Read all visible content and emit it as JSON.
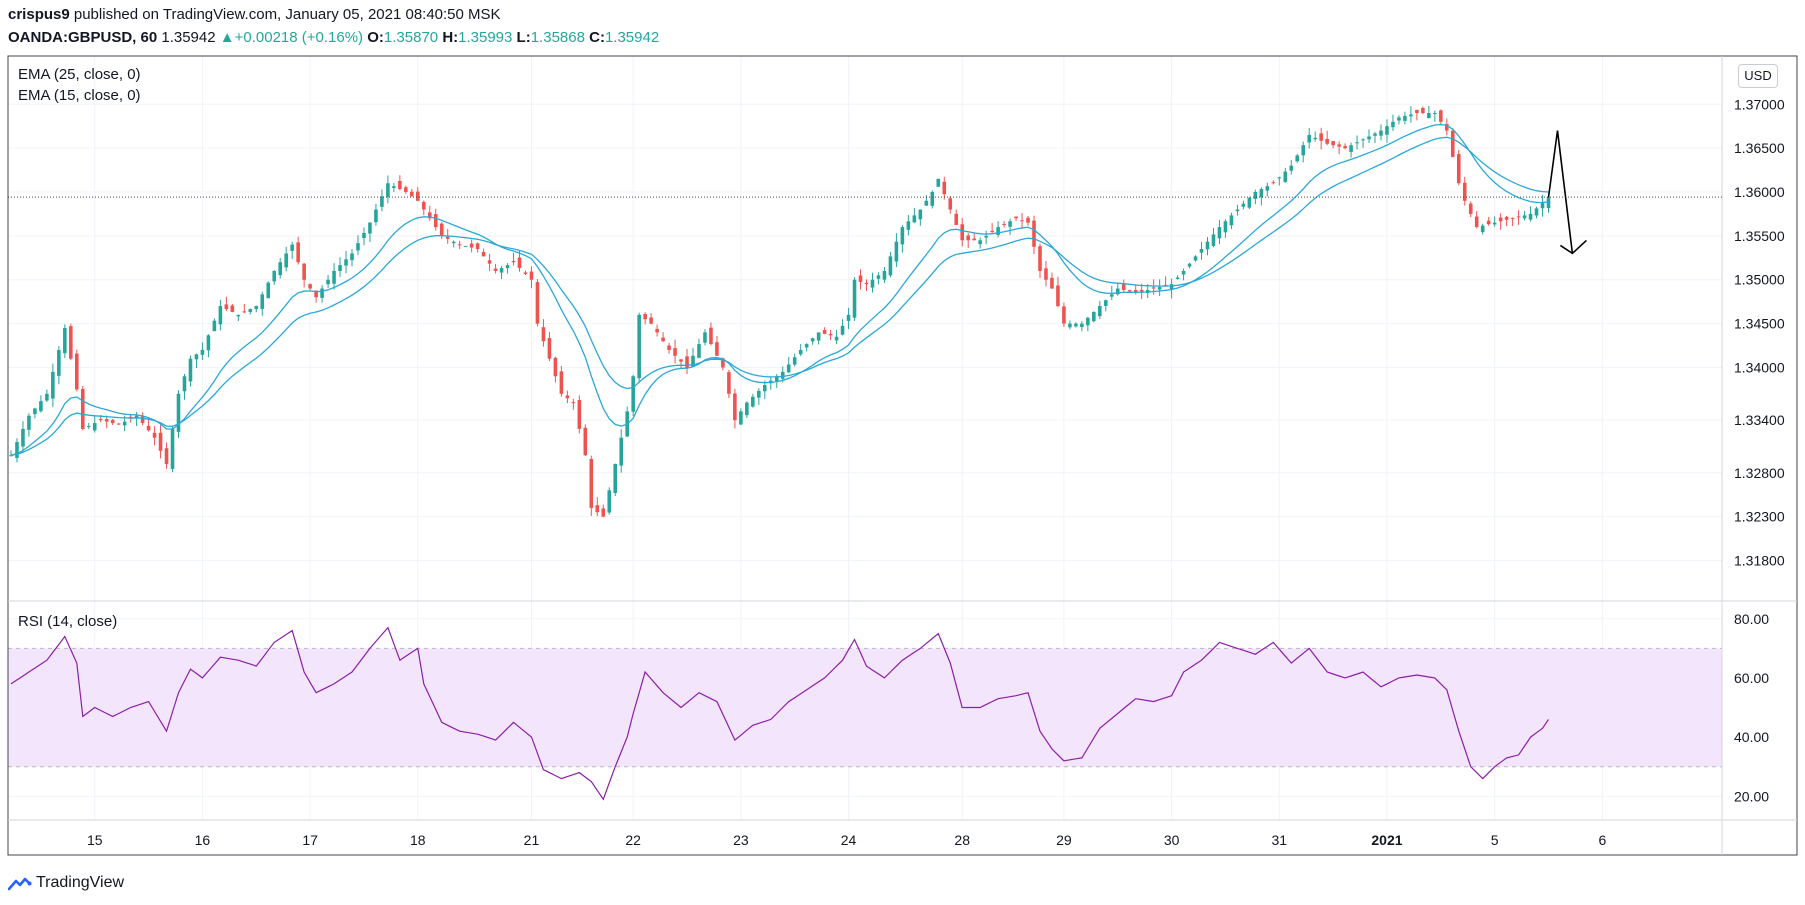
{
  "header": {
    "author": "crispus9",
    "published_text": " published on TradingView.com, January 05, 2021 08:40:50 MSK",
    "symbol": "OANDA:GBPUSD, 60",
    "last": "1.35942",
    "change": "+0.00218 (+0.16%)",
    "open_label": "O:",
    "open": "1.35870",
    "high_label": "H:",
    "high": "1.35993",
    "low_label": "L:",
    "low": "1.35868",
    "close_label": "C:",
    "close": "1.35942"
  },
  "legend": {
    "ema25": "EMA (25, close, 0)",
    "ema15": "EMA (15, close, 0)",
    "rsi": "RSI (14, close)"
  },
  "currency_badge": "USD",
  "footer": {
    "brand": "TradingView"
  },
  "colors": {
    "up": "#26a69a",
    "down": "#ef5350",
    "ema": "#2aa8d8",
    "rsi_line": "#8b1fa8",
    "rsi_band": "#f3e5fb"
  },
  "chart_data": {
    "type": "candlestick",
    "price_axis": {
      "ticks": [
        1.37,
        1.365,
        1.36,
        1.355,
        1.35,
        1.345,
        1.34,
        1.334,
        1.328,
        1.323,
        1.318
      ],
      "tick_labels": [
        "1.37000",
        "1.36500",
        "1.36000",
        "1.35500",
        "1.35000",
        "1.34500",
        "1.34000",
        "1.33400",
        "1.32800",
        "1.32300",
        "1.31800"
      ],
      "range": [
        1.3135,
        1.3755
      ],
      "current_price_line": 1.35942
    },
    "rsi_axis": {
      "ticks": [
        80,
        60,
        40,
        20
      ],
      "tick_labels": [
        "80.00",
        "60.00",
        "40.00",
        "20.00"
      ],
      "range": [
        12,
        86
      ],
      "band": [
        30,
        70
      ]
    },
    "time_axis": {
      "labels": [
        "15",
        "16",
        "17",
        "18",
        "21",
        "22",
        "23",
        "24",
        "28",
        "29",
        "30",
        "31",
        "2021",
        "5",
        "6"
      ],
      "bold": [
        "2021"
      ],
      "label_bar_index": [
        14,
        32,
        50,
        68,
        87,
        104,
        122,
        140,
        159,
        176,
        194,
        212,
        230,
        248,
        266
      ]
    },
    "price_series": [
      {
        "i": 0,
        "v": 1.33
      },
      {
        "i": 3,
        "v": 1.3345
      },
      {
        "i": 6,
        "v": 1.337
      },
      {
        "i": 9,
        "v": 1.3445
      },
      {
        "i": 11,
        "v": 1.3375
      },
      {
        "i": 12,
        "v": 1.333
      },
      {
        "i": 15,
        "v": 1.334
      },
      {
        "i": 18,
        "v": 1.3335
      },
      {
        "i": 21,
        "v": 1.3345
      },
      {
        "i": 24,
        "v": 1.332
      },
      {
        "i": 26,
        "v": 1.329
      },
      {
        "i": 28,
        "v": 1.337
      },
      {
        "i": 30,
        "v": 1.341
      },
      {
        "i": 32,
        "v": 1.342
      },
      {
        "i": 35,
        "v": 1.347
      },
      {
        "i": 38,
        "v": 1.346
      },
      {
        "i": 41,
        "v": 1.347
      },
      {
        "i": 44,
        "v": 1.351
      },
      {
        "i": 47,
        "v": 1.354
      },
      {
        "i": 49,
        "v": 1.35
      },
      {
        "i": 51,
        "v": 1.348
      },
      {
        "i": 54,
        "v": 1.351
      },
      {
        "i": 57,
        "v": 1.353
      },
      {
        "i": 60,
        "v": 1.3565
      },
      {
        "i": 63,
        "v": 1.361
      },
      {
        "i": 66,
        "v": 1.36
      },
      {
        "i": 68,
        "v": 1.359
      },
      {
        "i": 69,
        "v": 1.358
      },
      {
        "i": 72,
        "v": 1.355
      },
      {
        "i": 75,
        "v": 1.354
      },
      {
        "i": 78,
        "v": 1.3535
      },
      {
        "i": 81,
        "v": 1.351
      },
      {
        "i": 84,
        "v": 1.352
      },
      {
        "i": 87,
        "v": 1.35
      },
      {
        "i": 88,
        "v": 1.345
      },
      {
        "i": 90,
        "v": 1.341
      },
      {
        "i": 92,
        "v": 1.337
      },
      {
        "i": 94,
        "v": 1.336
      },
      {
        "i": 96,
        "v": 1.33
      },
      {
        "i": 97,
        "v": 1.324
      },
      {
        "i": 99,
        "v": 1.323
      },
      {
        "i": 101,
        "v": 1.329
      },
      {
        "i": 103,
        "v": 1.335
      },
      {
        "i": 104,
        "v": 1.339
      },
      {
        "i": 105,
        "v": 1.346
      },
      {
        "i": 107,
        "v": 1.345
      },
      {
        "i": 110,
        "v": 1.342
      },
      {
        "i": 113,
        "v": 1.34
      },
      {
        "i": 116,
        "v": 1.344
      },
      {
        "i": 119,
        "v": 1.34
      },
      {
        "i": 121,
        "v": 1.334
      },
      {
        "i": 123,
        "v": 1.336
      },
      {
        "i": 126,
        "v": 1.338
      },
      {
        "i": 129,
        "v": 1.3395
      },
      {
        "i": 132,
        "v": 1.342
      },
      {
        "i": 135,
        "v": 1.344
      },
      {
        "i": 138,
        "v": 1.3435
      },
      {
        "i": 140,
        "v": 1.346
      },
      {
        "i": 141,
        "v": 1.35
      },
      {
        "i": 143,
        "v": 1.3495
      },
      {
        "i": 146,
        "v": 1.351
      },
      {
        "i": 149,
        "v": 1.356
      },
      {
        "i": 152,
        "v": 1.358
      },
      {
        "i": 154,
        "v": 1.36
      },
      {
        "i": 155,
        "v": 1.3615
      },
      {
        "i": 157,
        "v": 1.358
      },
      {
        "i": 159,
        "v": 1.3545
      },
      {
        "i": 162,
        "v": 1.3545
      },
      {
        "i": 165,
        "v": 1.356
      },
      {
        "i": 168,
        "v": 1.357
      },
      {
        "i": 170,
        "v": 1.3565
      },
      {
        "i": 172,
        "v": 1.351
      },
      {
        "i": 174,
        "v": 1.349
      },
      {
        "i": 176,
        "v": 1.345
      },
      {
        "i": 179,
        "v": 1.345
      },
      {
        "i": 182,
        "v": 1.347
      },
      {
        "i": 185,
        "v": 1.349
      },
      {
        "i": 188,
        "v": 1.3485
      },
      {
        "i": 191,
        "v": 1.349
      },
      {
        "i": 194,
        "v": 1.3495
      },
      {
        "i": 196,
        "v": 1.351
      },
      {
        "i": 199,
        "v": 1.3535
      },
      {
        "i": 202,
        "v": 1.356
      },
      {
        "i": 205,
        "v": 1.358
      },
      {
        "i": 208,
        "v": 1.36
      },
      {
        "i": 211,
        "v": 1.361
      },
      {
        "i": 214,
        "v": 1.363
      },
      {
        "i": 217,
        "v": 1.3665
      },
      {
        "i": 220,
        "v": 1.3655
      },
      {
        "i": 223,
        "v": 1.365
      },
      {
        "i": 226,
        "v": 1.366
      },
      {
        "i": 229,
        "v": 1.367
      },
      {
        "i": 232,
        "v": 1.3685
      },
      {
        "i": 235,
        "v": 1.369
      },
      {
        "i": 238,
        "v": 1.369
      },
      {
        "i": 240,
        "v": 1.367
      },
      {
        "i": 242,
        "v": 1.361
      },
      {
        "i": 243,
        "v": 1.359
      },
      {
        "i": 245,
        "v": 1.356
      },
      {
        "i": 248,
        "v": 1.3565
      },
      {
        "i": 251,
        "v": 1.357
      },
      {
        "i": 254,
        "v": 1.3575
      },
      {
        "i": 257,
        "v": 1.3594
      }
    ],
    "rsi_series": [
      {
        "i": 0,
        "v": 58
      },
      {
        "i": 3,
        "v": 62
      },
      {
        "i": 6,
        "v": 66
      },
      {
        "i": 9,
        "v": 74
      },
      {
        "i": 11,
        "v": 65
      },
      {
        "i": 12,
        "v": 47
      },
      {
        "i": 14,
        "v": 50
      },
      {
        "i": 17,
        "v": 47
      },
      {
        "i": 20,
        "v": 50
      },
      {
        "i": 23,
        "v": 52
      },
      {
        "i": 26,
        "v": 42
      },
      {
        "i": 28,
        "v": 55
      },
      {
        "i": 30,
        "v": 63
      },
      {
        "i": 32,
        "v": 60
      },
      {
        "i": 35,
        "v": 67
      },
      {
        "i": 38,
        "v": 66
      },
      {
        "i": 41,
        "v": 64
      },
      {
        "i": 44,
        "v": 72
      },
      {
        "i": 47,
        "v": 76
      },
      {
        "i": 49,
        "v": 62
      },
      {
        "i": 51,
        "v": 55
      },
      {
        "i": 54,
        "v": 58
      },
      {
        "i": 57,
        "v": 62
      },
      {
        "i": 60,
        "v": 70
      },
      {
        "i": 63,
        "v": 77
      },
      {
        "i": 65,
        "v": 66
      },
      {
        "i": 68,
        "v": 70
      },
      {
        "i": 69,
        "v": 58
      },
      {
        "i": 72,
        "v": 45
      },
      {
        "i": 75,
        "v": 42
      },
      {
        "i": 78,
        "v": 41
      },
      {
        "i": 81,
        "v": 39
      },
      {
        "i": 84,
        "v": 45
      },
      {
        "i": 87,
        "v": 40
      },
      {
        "i": 89,
        "v": 29
      },
      {
        "i": 92,
        "v": 26
      },
      {
        "i": 95,
        "v": 28
      },
      {
        "i": 97,
        "v": 25
      },
      {
        "i": 99,
        "v": 19
      },
      {
        "i": 101,
        "v": 30
      },
      {
        "i": 103,
        "v": 40
      },
      {
        "i": 104,
        "v": 48
      },
      {
        "i": 106,
        "v": 62
      },
      {
        "i": 109,
        "v": 55
      },
      {
        "i": 112,
        "v": 50
      },
      {
        "i": 115,
        "v": 55
      },
      {
        "i": 118,
        "v": 52
      },
      {
        "i": 121,
        "v": 39
      },
      {
        "i": 124,
        "v": 44
      },
      {
        "i": 127,
        "v": 46
      },
      {
        "i": 130,
        "v": 52
      },
      {
        "i": 133,
        "v": 56
      },
      {
        "i": 136,
        "v": 60
      },
      {
        "i": 139,
        "v": 66
      },
      {
        "i": 141,
        "v": 73
      },
      {
        "i": 143,
        "v": 64
      },
      {
        "i": 146,
        "v": 60
      },
      {
        "i": 149,
        "v": 66
      },
      {
        "i": 152,
        "v": 70
      },
      {
        "i": 155,
        "v": 75
      },
      {
        "i": 157,
        "v": 65
      },
      {
        "i": 159,
        "v": 50
      },
      {
        "i": 162,
        "v": 50
      },
      {
        "i": 165,
        "v": 53
      },
      {
        "i": 168,
        "v": 54
      },
      {
        "i": 170,
        "v": 55
      },
      {
        "i": 172,
        "v": 42
      },
      {
        "i": 174,
        "v": 36
      },
      {
        "i": 176,
        "v": 32
      },
      {
        "i": 179,
        "v": 33
      },
      {
        "i": 182,
        "v": 43
      },
      {
        "i": 185,
        "v": 48
      },
      {
        "i": 188,
        "v": 53
      },
      {
        "i": 191,
        "v": 52
      },
      {
        "i": 194,
        "v": 54
      },
      {
        "i": 196,
        "v": 62
      },
      {
        "i": 199,
        "v": 66
      },
      {
        "i": 202,
        "v": 72
      },
      {
        "i": 205,
        "v": 70
      },
      {
        "i": 208,
        "v": 68
      },
      {
        "i": 211,
        "v": 72
      },
      {
        "i": 214,
        "v": 65
      },
      {
        "i": 217,
        "v": 70
      },
      {
        "i": 220,
        "v": 62
      },
      {
        "i": 223,
        "v": 60
      },
      {
        "i": 226,
        "v": 62
      },
      {
        "i": 229,
        "v": 57
      },
      {
        "i": 232,
        "v": 60
      },
      {
        "i": 235,
        "v": 61
      },
      {
        "i": 238,
        "v": 60
      },
      {
        "i": 240,
        "v": 56
      },
      {
        "i": 242,
        "v": 42
      },
      {
        "i": 244,
        "v": 30
      },
      {
        "i": 246,
        "v": 26
      },
      {
        "i": 248,
        "v": 30
      },
      {
        "i": 250,
        "v": 33
      },
      {
        "i": 252,
        "v": 34
      },
      {
        "i": 254,
        "v": 40
      },
      {
        "i": 256,
        "v": 43
      },
      {
        "i": 257,
        "v": 46
      }
    ],
    "ema_fast_period": 15,
    "ema_slow_period": 25,
    "annotation": {
      "type": "arrow-zigzag",
      "points": [
        [
          257,
          1.3594
        ],
        [
          258.5,
          1.367
        ],
        [
          261,
          1.353
        ]
      ]
    },
    "last_bar_index": 257,
    "x_range_bars": [
      -0.5,
      286
    ]
  }
}
